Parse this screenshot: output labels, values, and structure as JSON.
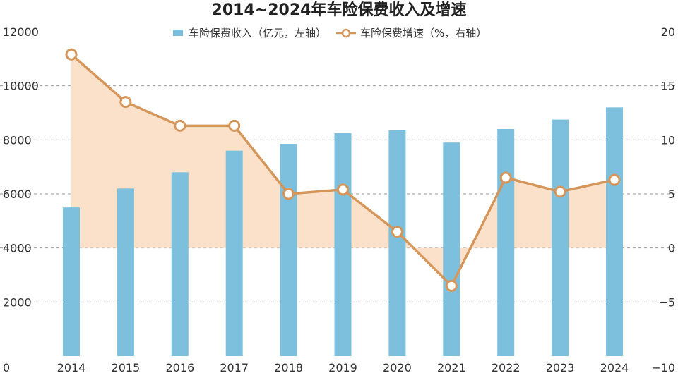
{
  "chart_data": {
    "type": "bar+line",
    "title": "2014~2024年车险保费收入及增速",
    "categories": [
      "2014",
      "2015",
      "2016",
      "2017",
      "2018",
      "2019",
      "2020",
      "2021",
      "2022",
      "2023",
      "2024"
    ],
    "series": [
      {
        "name": "车险保费收入（亿元，左轴）",
        "type": "bar",
        "axis": "left",
        "color": "#7cc0dd",
        "values": [
          5500,
          6200,
          6800,
          7600,
          7850,
          8250,
          8350,
          7900,
          8400,
          8750,
          9200
        ]
      },
      {
        "name": "车险保费增速（%，右轴）",
        "type": "line",
        "axis": "right",
        "color": "#d4965b",
        "fill": "#fbe1c9",
        "values": [
          17.9,
          13.5,
          11.3,
          11.3,
          5.0,
          5.4,
          1.5,
          -3.5,
          6.5,
          5.2,
          6.3
        ]
      }
    ],
    "y_left": {
      "min": 0,
      "max": 12000,
      "ticks": [
        0,
        2000,
        4000,
        6000,
        8000,
        10000,
        12000
      ]
    },
    "y_right": {
      "min": -10,
      "max": 20,
      "ticks": [
        -10,
        -5,
        0,
        5,
        10,
        15,
        20
      ],
      "tick_labels": [
        "−10",
        "−5",
        "0",
        "5",
        "10",
        "15",
        "20"
      ]
    },
    "grid": true,
    "legend_position": "top-center"
  }
}
